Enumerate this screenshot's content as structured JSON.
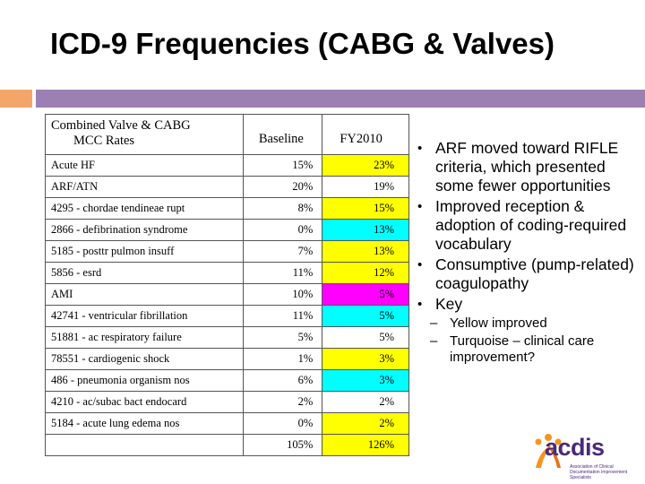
{
  "slide": {
    "title": "ICD-9 Frequencies (CABG & Valves)"
  },
  "table": {
    "header": {
      "label_line1": "Combined Valve & CABG",
      "label_line2": "MCC Rates",
      "baseline": "Baseline",
      "fy2010": "FY2010"
    },
    "rows": [
      {
        "label": "Acute HF",
        "baseline": "15%",
        "fy2010": "23%",
        "highlight": "yellow"
      },
      {
        "label": "ARF/ATN",
        "baseline": "20%",
        "fy2010": "19%",
        "highlight": "none"
      },
      {
        "label": "4295 - chordae tendineae rupt",
        "baseline": "8%",
        "fy2010": "15%",
        "highlight": "yellow"
      },
      {
        "label": "2866 - defibrination syndrome",
        "baseline": "0%",
        "fy2010": "13%",
        "highlight": "turquoise"
      },
      {
        "label": "5185 - posttr pulmon insuff",
        "baseline": "7%",
        "fy2010": "13%",
        "highlight": "yellow"
      },
      {
        "label": "5856 - esrd",
        "baseline": "11%",
        "fy2010": "12%",
        "highlight": "yellow"
      },
      {
        "label": "AMI",
        "baseline": "10%",
        "fy2010": "5%",
        "highlight": "magenta"
      },
      {
        "label": "42741 - ventricular fibrillation",
        "baseline": "11%",
        "fy2010": "5%",
        "highlight": "turquoise"
      },
      {
        "label": "51881 - ac respiratory failure",
        "baseline": "5%",
        "fy2010": "5%",
        "highlight": "none"
      },
      {
        "label": "78551 - cardiogenic shock",
        "baseline": "1%",
        "fy2010": "3%",
        "highlight": "yellow"
      },
      {
        "label": "486 - pneumonia organism nos",
        "baseline": "6%",
        "fy2010": "3%",
        "highlight": "turquoise"
      },
      {
        "label": "4210 - ac/subac bact endocard",
        "baseline": "2%",
        "fy2010": "2%",
        "highlight": "none"
      },
      {
        "label": "5184 - acute lung edema nos",
        "baseline": "0%",
        "fy2010": "2%",
        "highlight": "yellow"
      }
    ],
    "totals": {
      "label": "",
      "baseline": "105%",
      "fy2010": "126%",
      "highlight": "yellow"
    }
  },
  "bullets": [
    {
      "text": "ARF moved toward RIFLE criteria, which presented some fewer opportunities"
    },
    {
      "text": "Improved reception & adoption of coding-required vocabulary"
    },
    {
      "text": "Consumptive (pump-related) coagulopathy"
    },
    {
      "text": "Key"
    }
  ],
  "key_items": [
    {
      "text": "Yellow improved"
    },
    {
      "text": "Turquoise – clinical care improvement?"
    }
  ],
  "logo": {
    "word": "acdis",
    "tagline": "Association of Clinical Documentation Improvement Specialists"
  },
  "colors": {
    "yellow": "#ffff00",
    "turquoise": "#00ffff",
    "magenta": "#ff00ff",
    "accent_orange": "#f4a66a",
    "accent_purple": "#9b80b4"
  },
  "icons": {
    "bullet": "bullet-dot-icon",
    "logo": "acdis-logo-icon"
  }
}
